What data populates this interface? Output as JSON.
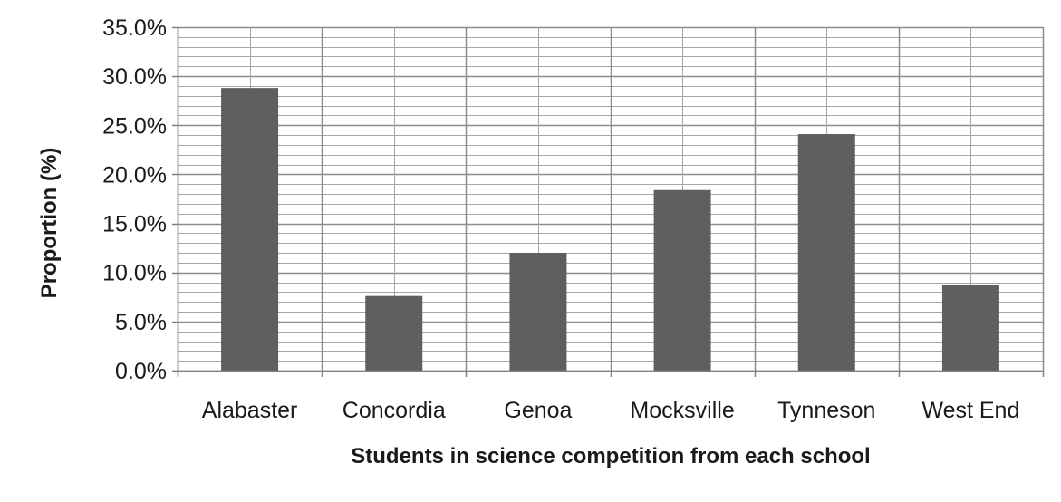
{
  "chart_data": {
    "type": "bar",
    "categories": [
      "Alabaster",
      "Concordia",
      "Genoa",
      "Mocksville",
      "Tynneson",
      "West End"
    ],
    "values": [
      28.8,
      7.6,
      12.0,
      18.4,
      24.1,
      8.7
    ],
    "xlabel": "Students in science competition from each school",
    "ylabel": "Proportion (%)",
    "ylim": [
      0,
      35
    ],
    "yticks": [
      0,
      5,
      10,
      15,
      20,
      25,
      30,
      35
    ],
    "ytick_labels": [
      "0.0%",
      "5.0%",
      "10.0%",
      "15.0%",
      "20.0%",
      "25.0%",
      "30.0%",
      "35.0%"
    ],
    "minor_grid_step": 1,
    "grid": true,
    "legend": "none",
    "bar_color": "#5f5f5f",
    "grid_color": "#a6a6a6"
  }
}
